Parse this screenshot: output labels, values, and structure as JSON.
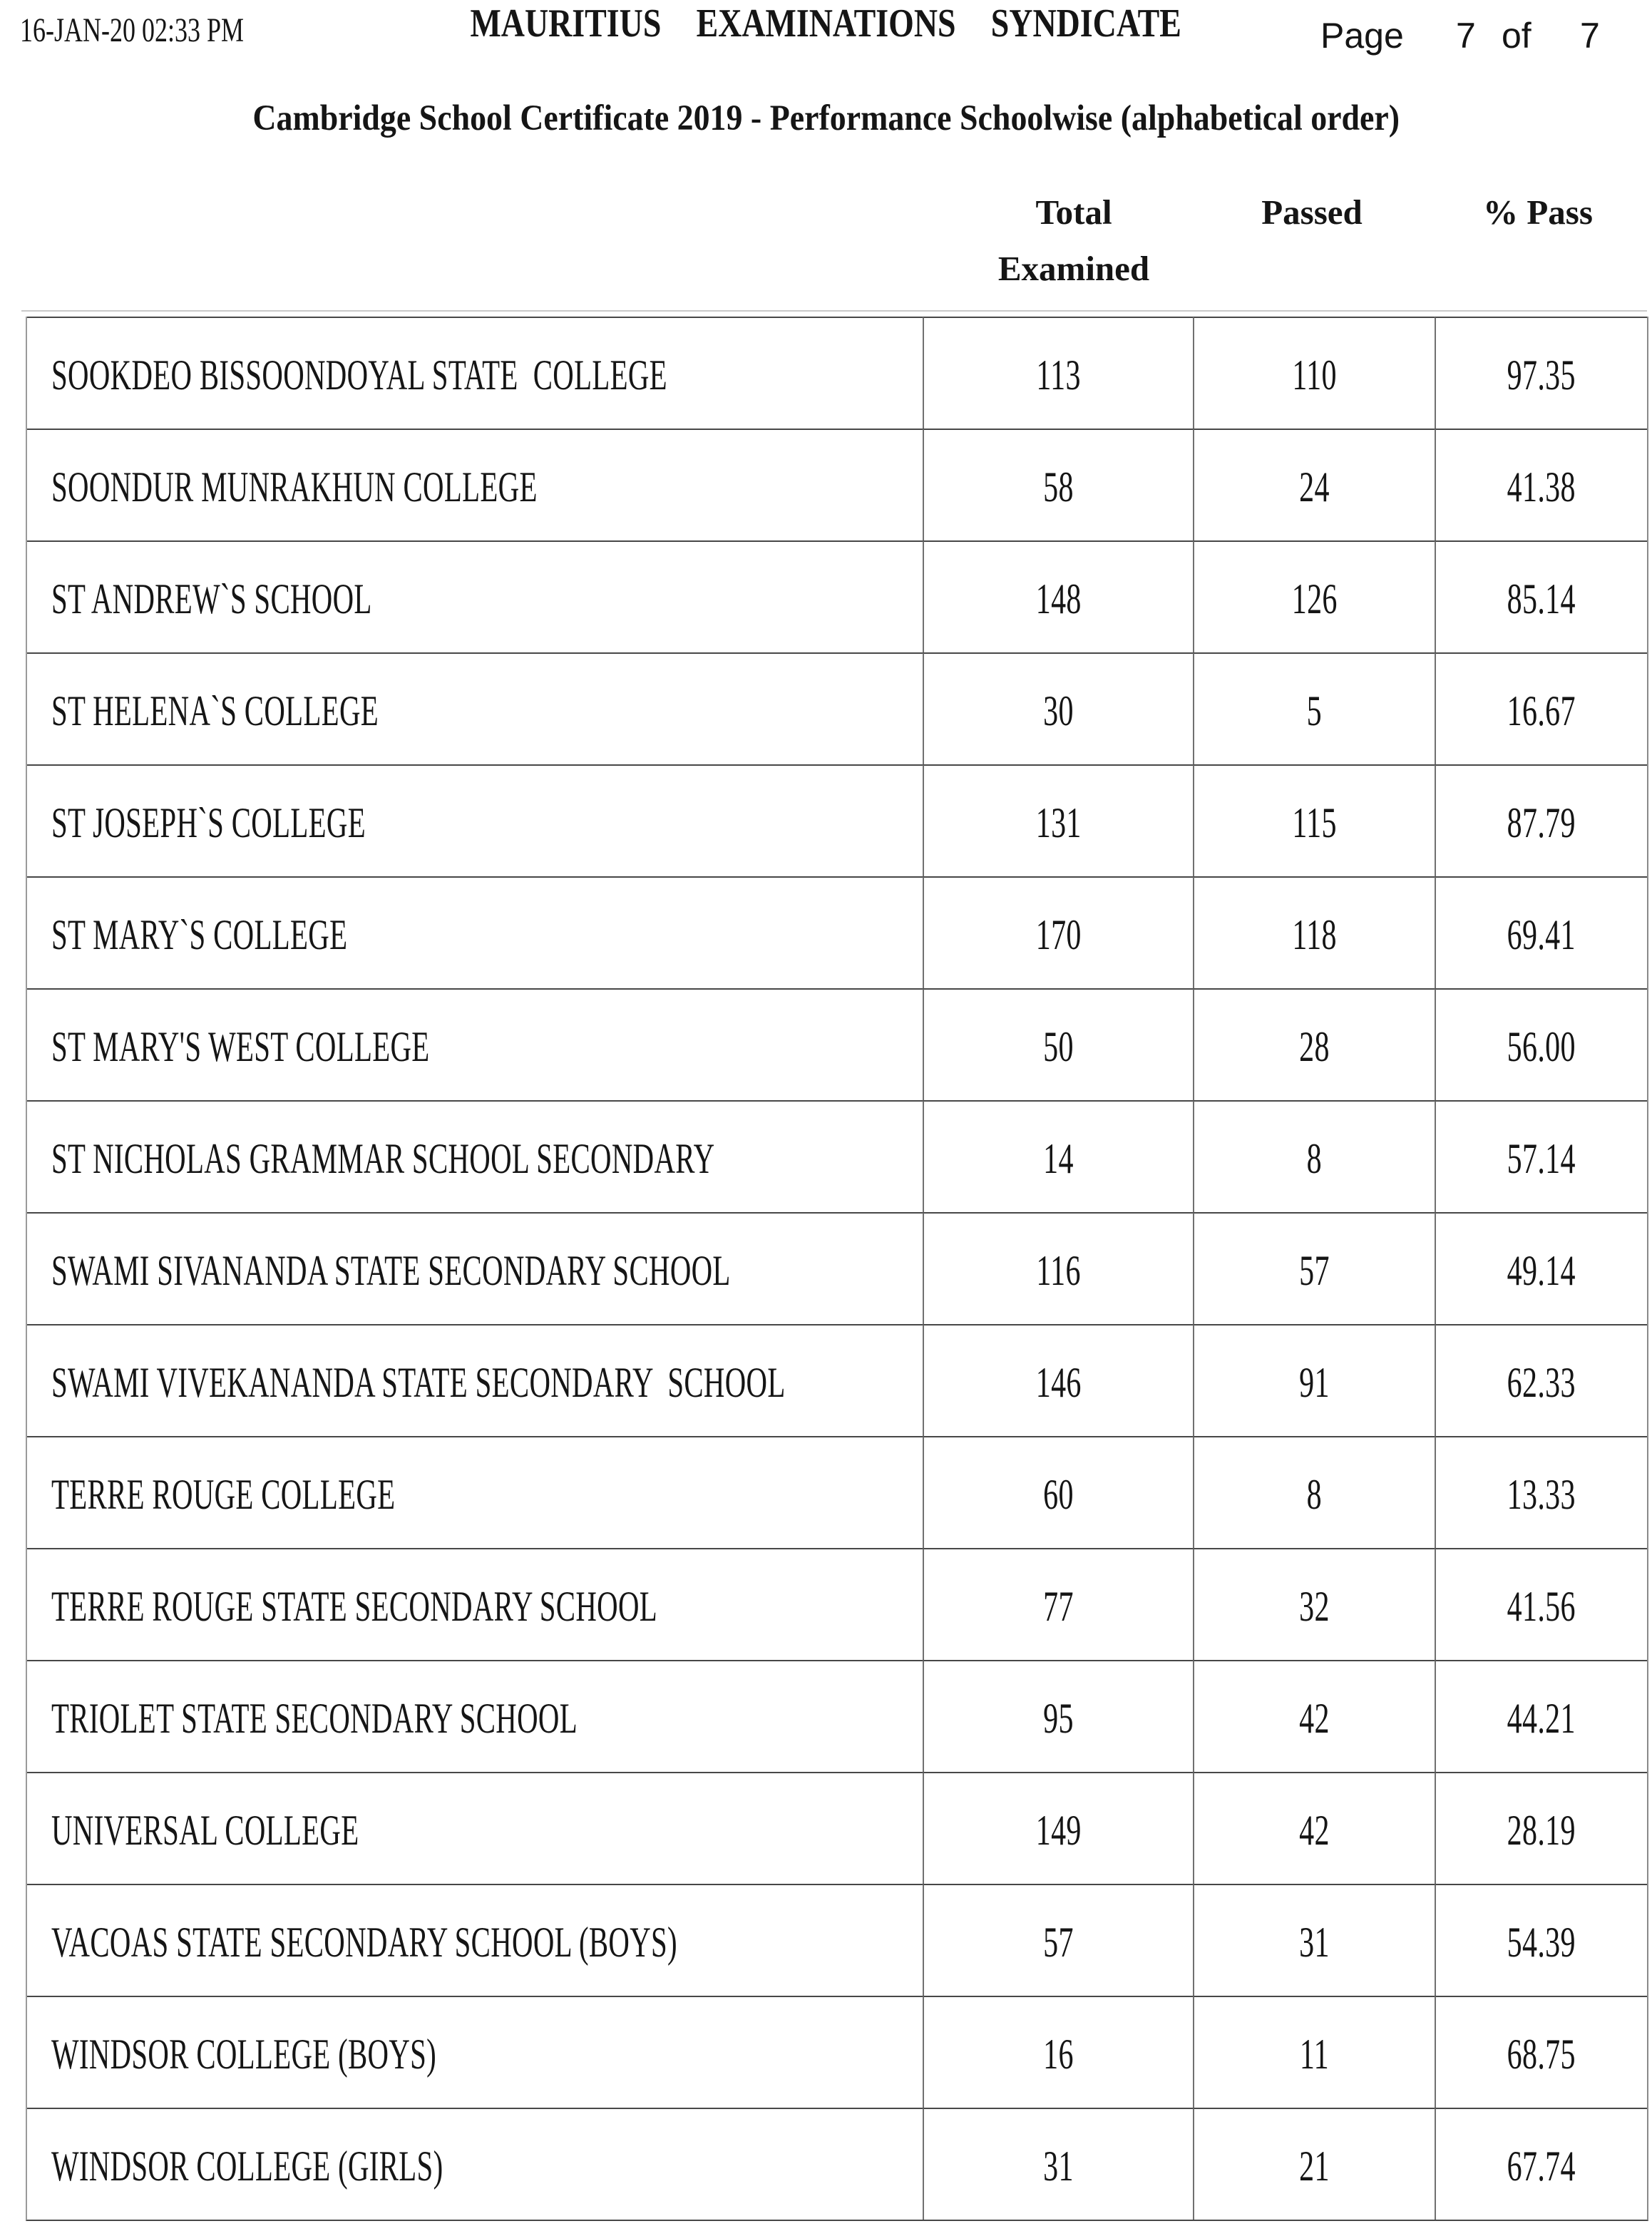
{
  "page": {
    "generated_at": "16-JAN-20 02:33 PM",
    "title": "MAURITIUS  EXAMINATIONS  SYNDICATE",
    "subtitle": "Cambridge School Certificate 2019 - Performance Schoolwise (alphabetical order)",
    "pagination": {
      "label": "Page",
      "current": "7",
      "of_word": "of",
      "total": "7"
    }
  },
  "table": {
    "headers": {
      "total_examined_line1": "Total",
      "total_examined_line2": "Examined",
      "passed": "Passed",
      "pass_pct": "% Pass"
    },
    "rows": [
      {
        "school": "SOOKDEO BISSOONDOYAL STATE  COLLEGE",
        "examined": "113",
        "passed": "110",
        "pct": "97.35"
      },
      {
        "school": "SOONDUR MUNRAKHUN COLLEGE",
        "examined": "58",
        "passed": "24",
        "pct": "41.38"
      },
      {
        "school": "ST ANDREW`S SCHOOL",
        "examined": "148",
        "passed": "126",
        "pct": "85.14"
      },
      {
        "school": "ST HELENA`S COLLEGE",
        "examined": "30",
        "passed": "5",
        "pct": "16.67"
      },
      {
        "school": "ST JOSEPH`S COLLEGE",
        "examined": "131",
        "passed": "115",
        "pct": "87.79"
      },
      {
        "school": "ST MARY`S COLLEGE",
        "examined": "170",
        "passed": "118",
        "pct": "69.41"
      },
      {
        "school": "ST MARY'S WEST COLLEGE",
        "examined": "50",
        "passed": "28",
        "pct": "56.00"
      },
      {
        "school": "ST NICHOLAS GRAMMAR SCHOOL SECONDARY",
        "examined": "14",
        "passed": "8",
        "pct": "57.14"
      },
      {
        "school": "SWAMI SIVANANDA STATE SECONDARY SCHOOL",
        "examined": "116",
        "passed": "57",
        "pct": "49.14"
      },
      {
        "school": "SWAMI VIVEKANANDA STATE SECONDARY  SCHOOL",
        "examined": "146",
        "passed": "91",
        "pct": "62.33"
      },
      {
        "school": "TERRE ROUGE COLLEGE",
        "examined": "60",
        "passed": "8",
        "pct": "13.33"
      },
      {
        "school": "TERRE ROUGE STATE SECONDARY SCHOOL",
        "examined": "77",
        "passed": "32",
        "pct": "41.56"
      },
      {
        "school": "TRIOLET STATE SECONDARY SCHOOL",
        "examined": "95",
        "passed": "42",
        "pct": "44.21"
      },
      {
        "school": "UNIVERSAL COLLEGE",
        "examined": "149",
        "passed": "42",
        "pct": "28.19"
      },
      {
        "school": "VACOAS STATE SECONDARY SCHOOL (BOYS)",
        "examined": "57",
        "passed": "31",
        "pct": "54.39"
      },
      {
        "school": "WINDSOR COLLEGE (BOYS)",
        "examined": "16",
        "passed": "11",
        "pct": "68.75"
      },
      {
        "school": "WINDSOR COLLEGE (GIRLS)",
        "examined": "31",
        "passed": "21",
        "pct": "67.74"
      }
    ]
  },
  "colors": {
    "background": "#ffffff",
    "text": "#151515",
    "grid_line_dark": "#474747",
    "grid_line_light": "#9a9a9a"
  }
}
